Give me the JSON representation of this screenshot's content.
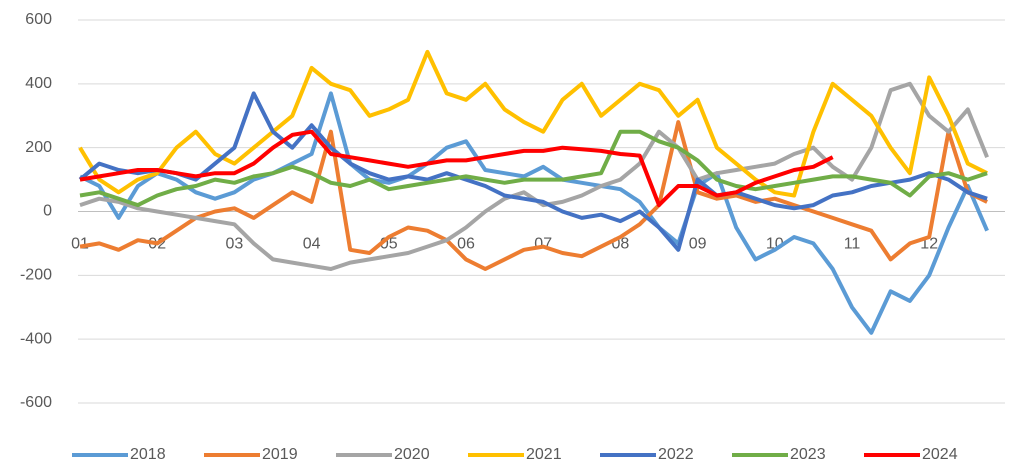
{
  "chart_data": {
    "type": "line",
    "categories": [
      "01",
      null,
      null,
      null,
      "02",
      null,
      null,
      null,
      "03",
      null,
      null,
      null,
      "04",
      null,
      null,
      null,
      "05",
      null,
      null,
      null,
      "06",
      null,
      null,
      null,
      "07",
      null,
      null,
      null,
      "08",
      null,
      null,
      null,
      "09",
      null,
      null,
      null,
      "10",
      null,
      null,
      null,
      "11",
      null,
      null,
      null,
      "12",
      null,
      null,
      null
    ],
    "ylim": [
      -600,
      600
    ],
    "yticks": [
      -600,
      -400,
      -200,
      0,
      200,
      400,
      600
    ],
    "grid": true,
    "legend": "bottom",
    "series": [
      {
        "name": "2018",
        "color": "#5b9bd5",
        "values": [
          110,
          80,
          -20,
          80,
          120,
          100,
          60,
          40,
          60,
          100,
          120,
          150,
          180,
          370,
          150,
          100,
          90,
          110,
          150,
          200,
          220,
          130,
          120,
          110,
          140,
          100,
          90,
          80,
          70,
          30,
          -50,
          -100,
          80,
          120,
          -50,
          -150,
          -120,
          -80,
          -100,
          -180,
          -300,
          -380,
          -250,
          -280,
          -200,
          -50,
          80,
          -60
        ]
      },
      {
        "name": "2019",
        "color": "#ed7d31",
        "values": [
          -110,
          -100,
          -120,
          -90,
          -100,
          -60,
          -20,
          0,
          10,
          -20,
          20,
          60,
          30,
          250,
          -120,
          -130,
          -80,
          -50,
          -60,
          -90,
          -150,
          -180,
          -150,
          -120,
          -110,
          -130,
          -140,
          -110,
          -80,
          -40,
          20,
          280,
          60,
          40,
          50,
          30,
          40,
          20,
          0,
          -20,
          -40,
          -60,
          -150,
          -100,
          -80,
          250,
          60,
          30
        ]
      },
      {
        "name": "2020",
        "color": "#a5a5a5",
        "values": [
          20,
          40,
          30,
          10,
          0,
          -10,
          -20,
          -30,
          -40,
          -100,
          -150,
          -160,
          -170,
          -180,
          -160,
          -150,
          -140,
          -130,
          -110,
          -90,
          -50,
          0,
          40,
          60,
          20,
          30,
          50,
          80,
          100,
          150,
          250,
          200,
          100,
          120,
          130,
          140,
          150,
          180,
          200,
          140,
          100,
          200,
          380,
          400,
          300,
          250,
          320,
          170
        ]
      },
      {
        "name": "2021",
        "color": "#ffc000",
        "values": [
          200,
          100,
          60,
          100,
          120,
          200,
          250,
          180,
          150,
          200,
          250,
          300,
          450,
          400,
          380,
          300,
          320,
          350,
          500,
          370,
          350,
          400,
          320,
          280,
          250,
          350,
          400,
          300,
          350,
          400,
          380,
          300,
          350,
          200,
          150,
          100,
          60,
          50,
          250,
          400,
          350,
          300,
          200,
          120,
          420,
          300,
          150,
          120
        ]
      },
      {
        "name": "2022",
        "color": "#4472c4",
        "values": [
          100,
          150,
          130,
          120,
          130,
          120,
          100,
          150,
          200,
          370,
          250,
          200,
          270,
          200,
          150,
          120,
          100,
          110,
          100,
          120,
          100,
          80,
          50,
          40,
          30,
          0,
          -20,
          -10,
          -30,
          0,
          -50,
          -120,
          100,
          50,
          60,
          40,
          20,
          10,
          20,
          50,
          60,
          80,
          90,
          100,
          120,
          100,
          60,
          40
        ]
      },
      {
        "name": "2023",
        "color": "#70ad47",
        "values": [
          50,
          60,
          40,
          20,
          50,
          70,
          80,
          100,
          90,
          110,
          120,
          140,
          120,
          90,
          80,
          100,
          70,
          80,
          90,
          100,
          110,
          100,
          90,
          100,
          100,
          100,
          110,
          120,
          250,
          250,
          220,
          200,
          160,
          100,
          80,
          70,
          80,
          90,
          100,
          110,
          110,
          100,
          90,
          50,
          110,
          120,
          100,
          120
        ]
      },
      {
        "name": "2024",
        "color": "#ff0000",
        "values": [
          100,
          110,
          120,
          130,
          130,
          120,
          110,
          120,
          120,
          150,
          200,
          240,
          250,
          180,
          170,
          160,
          150,
          140,
          150,
          160,
          160,
          170,
          180,
          190,
          190,
          200,
          195,
          190,
          180,
          175,
          20,
          80,
          80,
          50,
          60,
          90,
          110,
          130,
          140,
          170,
          null,
          null,
          null,
          null,
          null,
          null,
          null,
          null
        ]
      }
    ]
  }
}
